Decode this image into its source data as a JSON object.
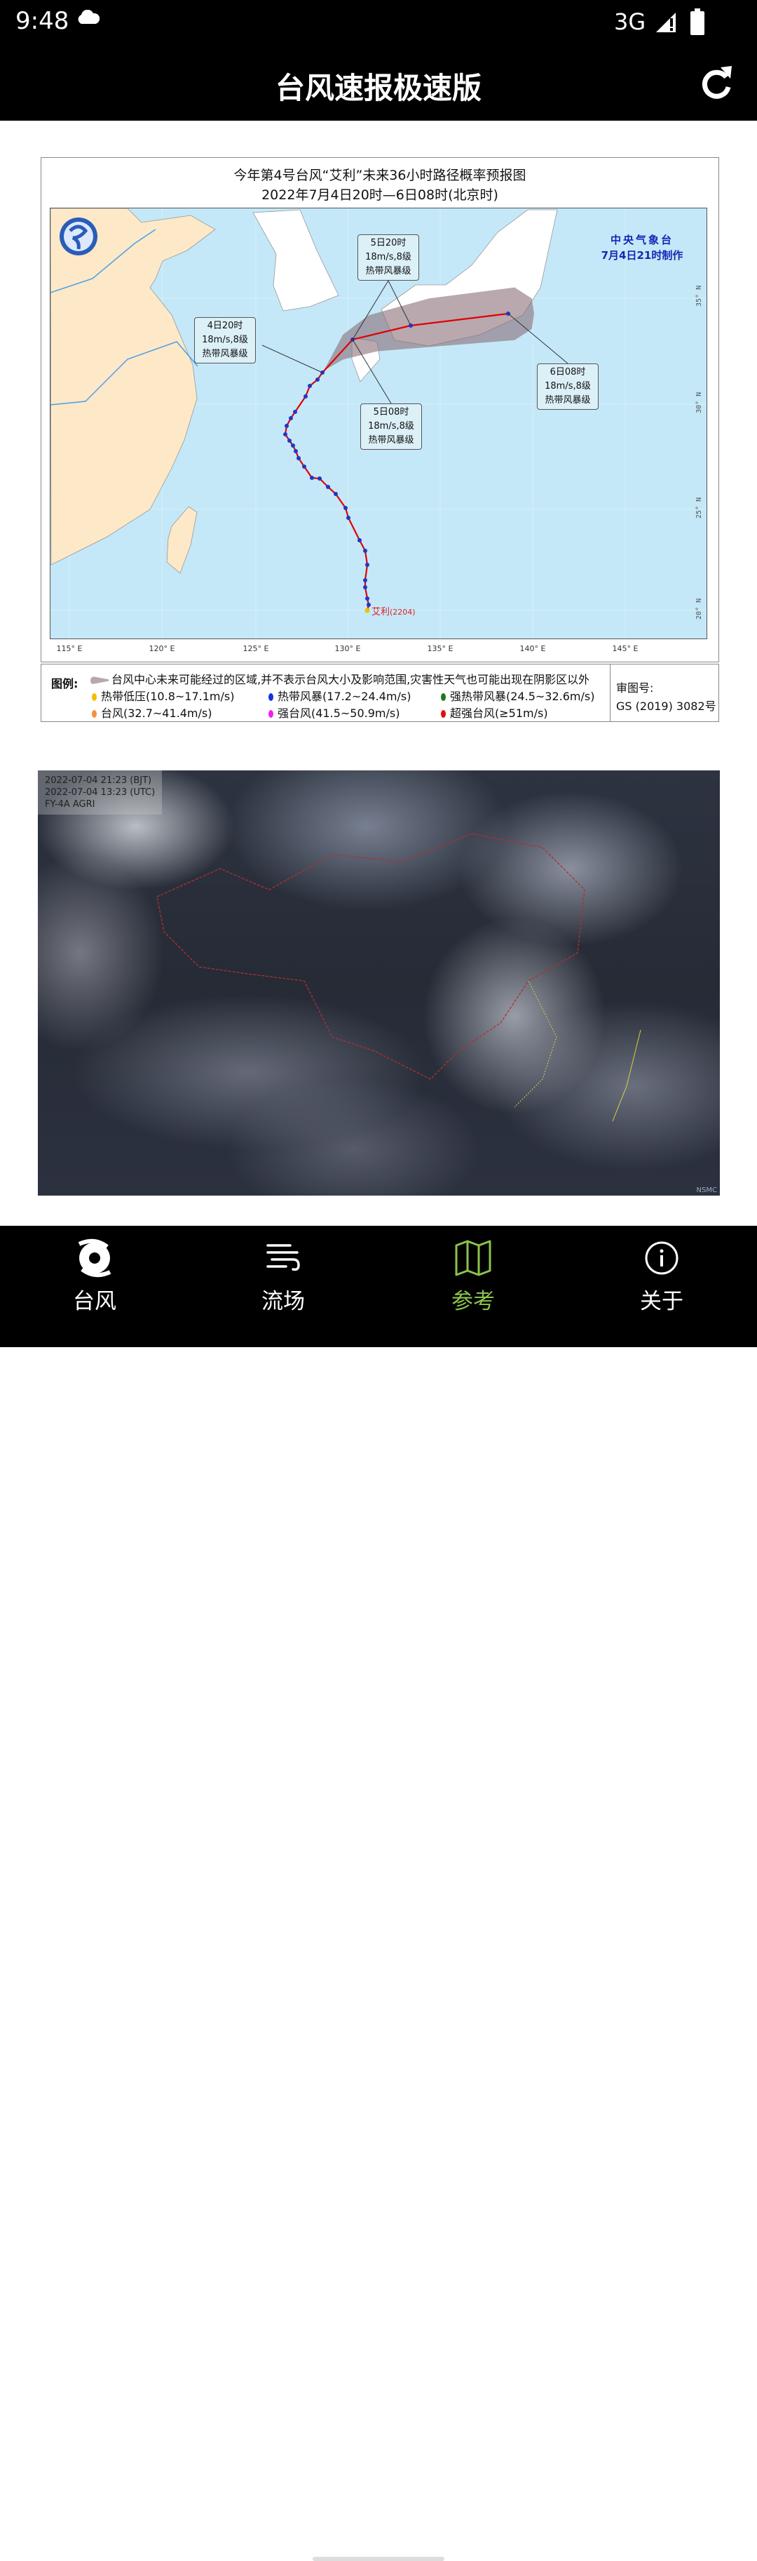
{
  "status_bar": {
    "time": "9:48",
    "network": "3G",
    "icons": [
      "cloud-icon",
      "signal-icon",
      "battery-icon"
    ]
  },
  "app_bar": {
    "title": "台风速报极速版",
    "refresh_icon": "refresh-icon"
  },
  "forecast_map": {
    "title_line1": "今年第4号台风“艾利”未来36小时路径概率预报图",
    "title_line2": "2022年7月4日20时—6日08时(北京时)",
    "agency": "中央气象台",
    "made": "7月4日21时制作",
    "typhoon_label": "艾利",
    "typhoon_code": "(2204)",
    "callouts": [
      {
        "time": "5日20时",
        "wind": "18m/s,8级",
        "level": "热带风暴级"
      },
      {
        "time": "4日20时",
        "wind": "18m/s,8级",
        "level": "热带风暴级"
      },
      {
        "time": "5日08时",
        "wind": "18m/s,8级",
        "level": "热带风暴级"
      },
      {
        "time": "6日08时",
        "wind": "18m/s,8级",
        "level": "热带风暴级"
      }
    ],
    "lon_labels": [
      "115° E",
      "120° E",
      "125° E",
      "130° E",
      "135° E",
      "140° E",
      "145° E"
    ],
    "lat_labels": [
      "35° N",
      "30° N",
      "25° N",
      "20° N"
    ],
    "colors": {
      "sea": "#c4e8f8",
      "land": "#fde8c8",
      "track": "#e00000",
      "cone": "#8a6e78",
      "point": "#2236c8"
    }
  },
  "legend": {
    "title": "图例:",
    "cone_desc": "台风中心未来可能经过的区域,并不表示台风大小及影响范围,灾害性天气也可能出现在阴影区以外",
    "items": [
      {
        "label": "热带低压(10.8~17.1m/s)",
        "color": "#f0c000"
      },
      {
        "label": "热带风暴(17.2~24.4m/s)",
        "color": "#1a2ee0"
      },
      {
        "label": "强热带风暴(24.5~32.6m/s)",
        "color": "#1a7a1a"
      },
      {
        "label": "台风(32.7~41.4m/s)",
        "color": "#f59040"
      },
      {
        "label": "强台风(41.5~50.9m/s)",
        "color": "#f020f0"
      },
      {
        "label": "超强台风(≥51m/s)",
        "color": "#e01010"
      }
    ],
    "approval_label": "审图号:",
    "approval_no": "GS  (2019)  3082号"
  },
  "satellite": {
    "bjt": "2022-07-04 21:23 (BJT)",
    "utc": "2022-07-04 13:23 (UTC)",
    "sensor": "FY-4A AGRI",
    "logo": "NSMC"
  },
  "bottom_nav": {
    "active_color": "#8bc34a",
    "items": [
      {
        "label": "台风",
        "icon": "typhoon-icon"
      },
      {
        "label": "流场",
        "icon": "wind-flow-icon"
      },
      {
        "label": "参考",
        "icon": "map-icon",
        "active": true
      },
      {
        "label": "关于",
        "icon": "info-icon"
      }
    ]
  }
}
